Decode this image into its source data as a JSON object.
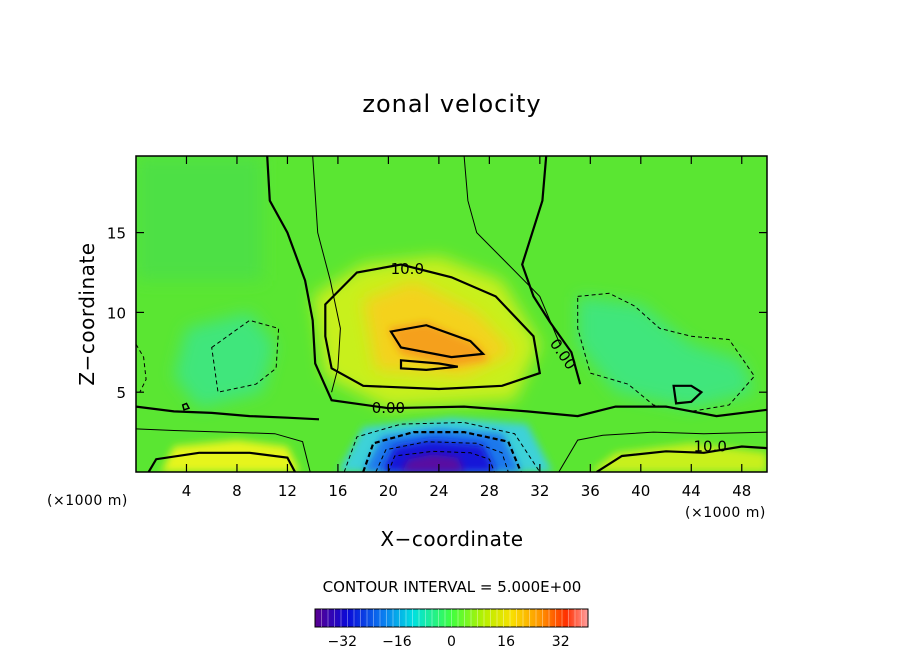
{
  "chart_data": {
    "type": "heatmap",
    "title": "zonal velocity",
    "xlabel": "X−coordinate",
    "ylabel": "Z−coordinate",
    "x_unit": "(×1000 m)",
    "z_unit": "(×1000 m)",
    "xlim": [
      0,
      50
    ],
    "ylim": [
      0,
      19.8
    ],
    "x_ticks": [
      4,
      8,
      12,
      16,
      20,
      24,
      28,
      32,
      36,
      40,
      44,
      48
    ],
    "y_ticks": [
      5,
      10,
      15
    ],
    "contour_interval_text": "CONTOUR INTERVAL = 5.000E+00",
    "contour_labels": [
      {
        "text": "10.0",
        "x": 21.5,
        "z": 12.4
      },
      {
        "text": "0.00",
        "x": 33.5,
        "z": 7.2
      },
      {
        "text": "0.00",
        "x": 20.0,
        "z": 3.7
      },
      {
        "text": "10.0",
        "x": 45.5,
        "z": 1.3
      }
    ],
    "colorbar": {
      "ticks": [
        "−32",
        "−16",
        "0",
        "16",
        "32"
      ],
      "tick_values": [
        -32,
        -16,
        0,
        16,
        32
      ],
      "range": [
        -40,
        40
      ]
    },
    "features": [
      {
        "kind": "jet_max",
        "value": 22,
        "x": 24,
        "z": 8.2
      },
      {
        "kind": "jet_min",
        "value": -34,
        "x": 23.5,
        "z": 0.6
      },
      {
        "kind": "low_level_max",
        "value": 18,
        "x": 8,
        "z": 0.5
      },
      {
        "kind": "background",
        "value": 5
      }
    ]
  }
}
